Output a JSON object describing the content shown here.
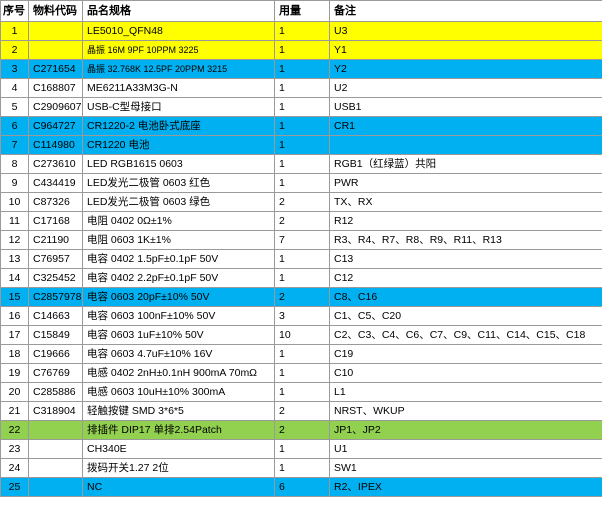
{
  "table": {
    "headers": [
      "序号",
      "物料代码",
      "品名规格",
      "用量",
      "备注"
    ],
    "rows": [
      {
        "idx": "1",
        "code": "",
        "spec": "LE5010_QFN48",
        "qty": "1",
        "note": "U3",
        "hl": "yellow"
      },
      {
        "idx": "2",
        "code": "",
        "spec": "晶振 16M 9PF 10PPM 3225",
        "qty": "1",
        "note": "Y1",
        "hl": "yellow",
        "small": true
      },
      {
        "idx": "3",
        "code": "C271654",
        "spec": "晶振 32.768K 12.5PF 20PPM 3215",
        "qty": "1",
        "note": "Y2",
        "hl": "blue",
        "small": true
      },
      {
        "idx": "4",
        "code": "C168807",
        "spec": "ME6211A33M3G-N",
        "qty": "1",
        "note": "U2",
        "hl": ""
      },
      {
        "idx": "5",
        "code": "C2909607",
        "spec": "USB-C型母接口",
        "qty": "1",
        "note": "USB1",
        "hl": ""
      },
      {
        "idx": "6",
        "code": "C964727",
        "spec": "CR1220-2 电池卧式底座",
        "qty": "1",
        "note": "CR1",
        "hl": "blue"
      },
      {
        "idx": "7",
        "code": "C114980",
        "spec": "CR1220 电池",
        "qty": "1",
        "note": "",
        "hl": "blue"
      },
      {
        "idx": "8",
        "code": "C273610",
        "spec": "LED RGB1615 0603",
        "qty": "1",
        "note": "RGB1（红绿蓝）共阳",
        "hl": ""
      },
      {
        "idx": "9",
        "code": "C434419",
        "spec": "LED发光二极管 0603 红色",
        "qty": "1",
        "note": "PWR",
        "hl": ""
      },
      {
        "idx": "10",
        "code": "C87326",
        "spec": "LED发光二极管 0603 绿色",
        "qty": "2",
        "note": "TX、RX",
        "hl": ""
      },
      {
        "idx": "11",
        "code": "C17168",
        "spec": "电阻 0402 0Ω±1%",
        "qty": "2",
        "note": "R12",
        "hl": ""
      },
      {
        "idx": "12",
        "code": "C21190",
        "spec": "电阻 0603 1K±1%",
        "qty": "7",
        "note": "R3、R4、R7、R8、R9、R11、R13",
        "hl": ""
      },
      {
        "idx": "13",
        "code": "C76957",
        "spec": "电容 0402 1.5pF±0.1pF 50V",
        "qty": "1",
        "note": "C13",
        "hl": ""
      },
      {
        "idx": "14",
        "code": "C325452",
        "spec": "电容 0402 2.2pF±0.1pF 50V",
        "qty": "1",
        "note": "C12",
        "hl": ""
      },
      {
        "idx": "15",
        "code": "C2857978",
        "spec": "电容 0603 20pF±10% 50V",
        "qty": "2",
        "note": "C8、C16",
        "hl": "blue"
      },
      {
        "idx": "16",
        "code": "C14663",
        "spec": "电容 0603 100nF±10% 50V",
        "qty": "3",
        "note": "C1、C5、C20",
        "hl": ""
      },
      {
        "idx": "17",
        "code": "C15849",
        "spec": "电容 0603 1uF±10% 50V",
        "qty": "10",
        "note": "C2、C3、C4、C6、C7、C9、C11、C14、C15、C18",
        "hl": ""
      },
      {
        "idx": "18",
        "code": "C19666",
        "spec": "电容 0603 4.7uF±10% 16V",
        "qty": "1",
        "note": "C19",
        "hl": ""
      },
      {
        "idx": "19",
        "code": "C76769",
        "spec": "电感 0402 2nH±0.1nH 900mA 70mΩ",
        "qty": "1",
        "note": "C10",
        "hl": ""
      },
      {
        "idx": "20",
        "code": "C285886",
        "spec": "电感 0603 10uH±10% 300mA",
        "qty": "1",
        "note": "L1",
        "hl": ""
      },
      {
        "idx": "21",
        "code": "C318904",
        "spec": "轻触按键 SMD 3*6*5",
        "qty": "2",
        "note": "NRST、WKUP",
        "hl": ""
      },
      {
        "idx": "22",
        "code": "",
        "spec": "排插件 DIP17 单排2.54Patch",
        "qty": "2",
        "note": "JP1、JP2",
        "hl": "green"
      },
      {
        "idx": "23",
        "code": "",
        "spec": "CH340E",
        "qty": "1",
        "note": "U1",
        "hl": ""
      },
      {
        "idx": "24",
        "code": "",
        "spec": "拨码开关1.27 2位",
        "qty": "1",
        "note": "SW1",
        "hl": ""
      },
      {
        "idx": "25",
        "code": "",
        "spec": "NC",
        "qty": "6",
        "note": "R2、IPEX",
        "hl": "blue"
      }
    ]
  },
  "colors": {
    "yellow": "#ffff00",
    "blue": "#00b0f0",
    "green": "#92d050",
    "border": "#9a9a9a"
  }
}
